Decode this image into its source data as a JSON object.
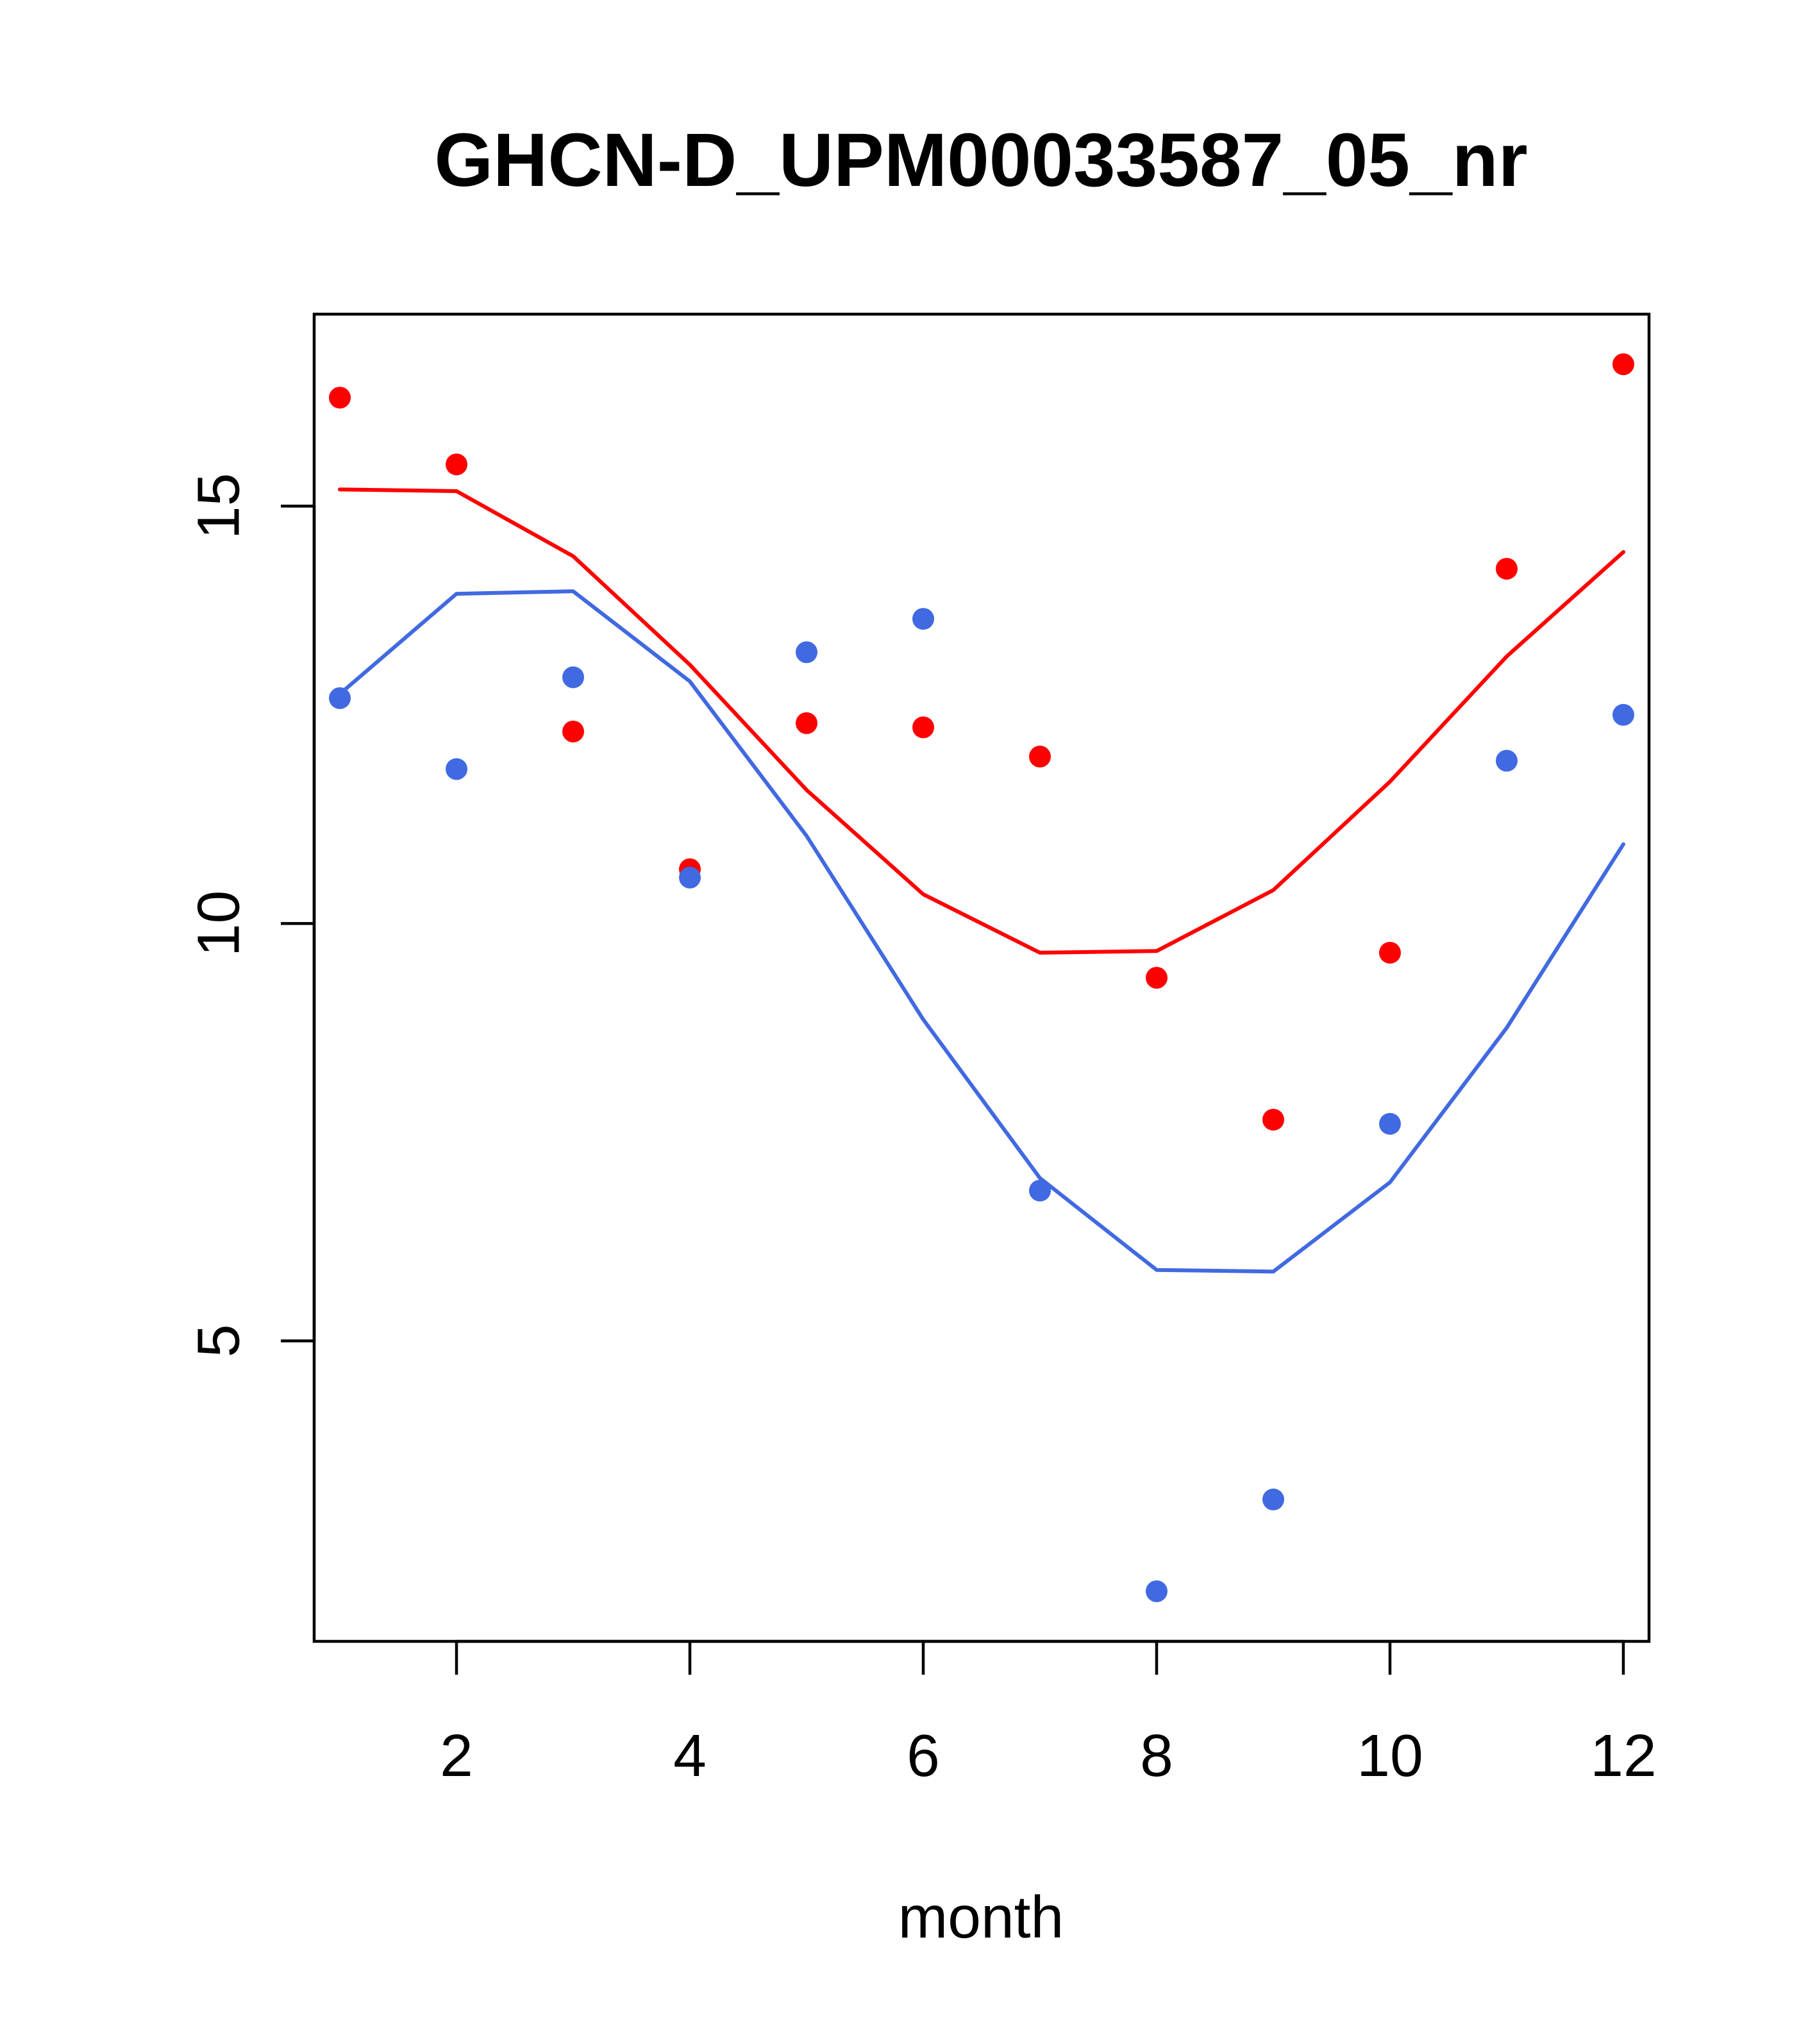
{
  "chart_data": {
    "type": "scatter",
    "title": "GHCN-D_UPM00033587_05_nr",
    "xlabel": "month",
    "ylabel": "",
    "xlim": [
      0.78,
      12.22
    ],
    "ylim": [
      1.4,
      17.3
    ],
    "x_ticks": [
      2,
      4,
      6,
      8,
      10,
      12
    ],
    "y_ticks": [
      5,
      10,
      15
    ],
    "grid": false,
    "series": [
      {
        "color": "#ff0000",
        "points": {
          "x": [
            1,
            2,
            3,
            4,
            5,
            6,
            7,
            8,
            9,
            10,
            11,
            12
          ],
          "y": [
            16.3,
            15.5,
            12.3,
            10.65,
            12.4,
            12.35,
            12.0,
            9.35,
            7.65,
            9.65,
            14.25,
            16.7
          ]
        },
        "curve": {
          "x": [
            1,
            2,
            3,
            4,
            5,
            6,
            7,
            8,
            9,
            10,
            11,
            12
          ],
          "y": [
            15.2,
            15.18,
            14.4,
            13.1,
            11.6,
            10.35,
            9.65,
            9.67,
            10.4,
            11.7,
            13.2,
            14.45
          ]
        }
      },
      {
        "color": "#4169e1",
        "points": {
          "x": [
            1,
            2,
            3,
            4,
            5,
            6,
            7,
            8,
            9,
            10,
            11,
            12
          ],
          "y": [
            12.7,
            11.85,
            12.95,
            10.55,
            13.25,
            13.65,
            6.8,
            2.0,
            3.1,
            7.6,
            11.95,
            12.5
          ]
        },
        "curve": {
          "x": [
            1,
            2,
            3,
            4,
            5,
            6,
            7,
            8,
            9,
            10,
            11,
            12
          ],
          "y": [
            12.75,
            13.95,
            13.98,
            12.9,
            11.05,
            8.85,
            6.95,
            5.85,
            5.83,
            6.9,
            8.75,
            10.95
          ]
        }
      }
    ]
  }
}
